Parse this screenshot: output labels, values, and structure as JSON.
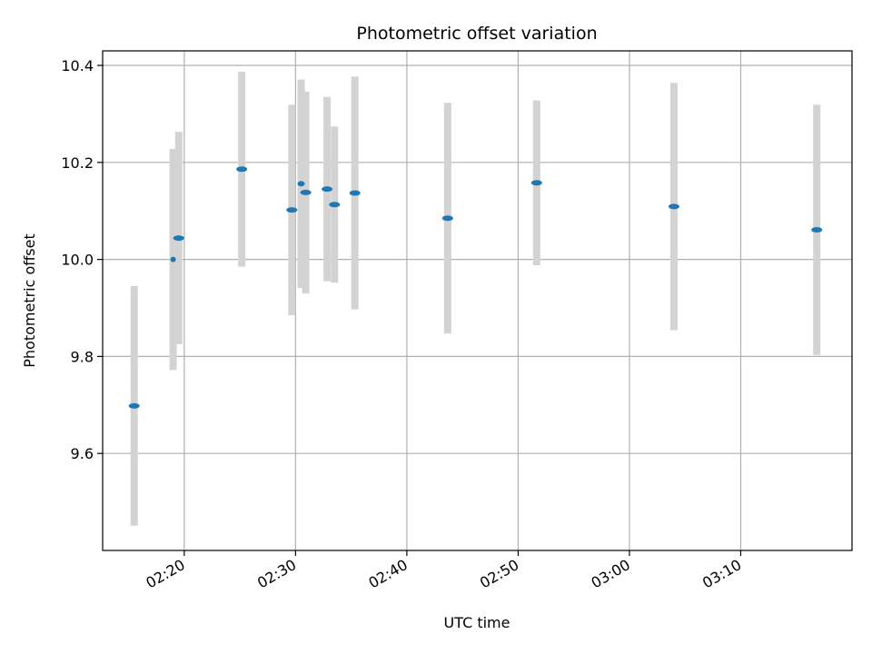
{
  "chart_data": {
    "type": "scatter",
    "title": "Photometric offset variation",
    "xlabel": "UTC time",
    "ylabel": "Photometric offset",
    "x_axis_type": "time",
    "xlim": [
      "02:12:40",
      "03:20:00"
    ],
    "ylim": [
      9.4,
      10.43
    ],
    "x_ticks": [
      "02:20",
      "02:30",
      "02:40",
      "02:50",
      "03:00",
      "03:10"
    ],
    "y_ticks": [
      9.6,
      9.8,
      10.0,
      10.2,
      10.4
    ],
    "y_tick_labels": [
      "9.6",
      "9.8",
      "10.0",
      "10.2",
      "10.4"
    ],
    "grid": true,
    "colors": {
      "point": "#1f77b4",
      "errorbar": "#d3d3d3",
      "grid": "#b0b0b0"
    },
    "series": [
      {
        "points": [
          {
            "x": "02:15:30",
            "y": 9.698,
            "yerr": 0.247,
            "width": 12
          },
          {
            "x": "02:19:00",
            "y": 10.0,
            "yerr": 0.228,
            "width": 6
          },
          {
            "x": "02:19:30",
            "y": 10.044,
            "yerr": 0.219,
            "width": 12
          },
          {
            "x": "02:25:10",
            "y": 10.186,
            "yerr": 0.201,
            "width": 12
          },
          {
            "x": "02:29:40",
            "y": 10.102,
            "yerr": 0.217,
            "width": 12
          },
          {
            "x": "02:30:30",
            "y": 10.156,
            "yerr": 0.215,
            "width": 8
          },
          {
            "x": "02:30:55",
            "y": 10.138,
            "yerr": 0.208,
            "width": 12
          },
          {
            "x": "02:32:50",
            "y": 10.145,
            "yerr": 0.19,
            "width": 12
          },
          {
            "x": "02:33:30",
            "y": 10.113,
            "yerr": 0.161,
            "width": 12
          },
          {
            "x": "02:35:20",
            "y": 10.137,
            "yerr": 0.24,
            "width": 12
          },
          {
            "x": "02:43:40",
            "y": 10.085,
            "yerr": 0.238,
            "width": 12
          },
          {
            "x": "02:51:40",
            "y": 10.158,
            "yerr": 0.17,
            "width": 12
          },
          {
            "x": "03:04:00",
            "y": 10.109,
            "yerr": 0.255,
            "width": 12
          },
          {
            "x": "03:16:50",
            "y": 10.061,
            "yerr": 0.258,
            "width": 12
          }
        ]
      }
    ]
  }
}
